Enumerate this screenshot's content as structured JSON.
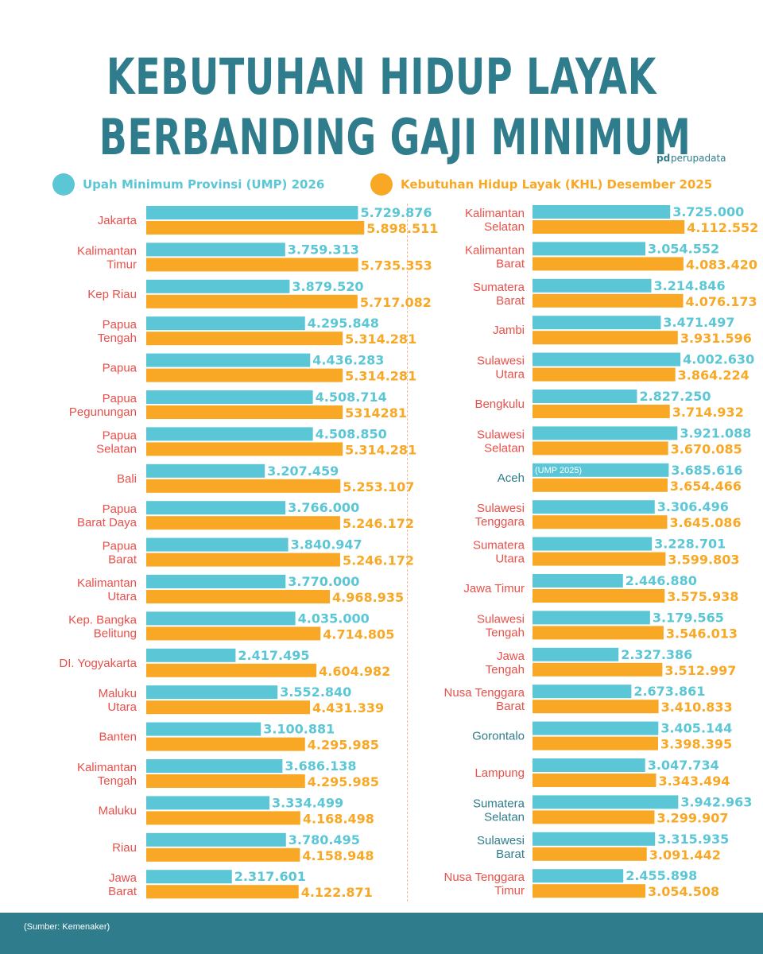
{
  "title_line1": "KEBUTUHAN HIDUP LAYAK",
  "title_line2": "BERBANDING GAJI MINIMUM",
  "brand": "perupadata",
  "source": "(Sumber: Kemenaker)",
  "colors": {
    "ump": "#5bc7d6",
    "khl": "#f9a825",
    "label_left": "#e8504a",
    "label_right": "#e8504a",
    "label_teal": "#2f7c8c"
  },
  "chart_data": {
    "type": "bar",
    "orientation": "horizontal",
    "title": "KEBUTUHAN HIDUP LAYAK BERBANDING GAJI MINIMUM",
    "legend": [
      "Upah Minimum Provinsi (UMP) 2026",
      "Kebutuhan Hidup Layak (KHL) Desember 2025"
    ],
    "xlim": [
      0,
      6000000
    ],
    "panels": [
      {
        "rows": [
          {
            "label": [
              "Jakarta"
            ],
            "ump": 5729876,
            "ump_label": "5.729.876",
            "khl": 5898511,
            "khl_label": "5.898.511"
          },
          {
            "label": [
              "Kalimantan",
              "Timur"
            ],
            "ump": 3759313,
            "ump_label": "3.759.313",
            "khl": 5735353,
            "khl_label": "5.735.353"
          },
          {
            "label": [
              "Kep Riau"
            ],
            "ump": 3879520,
            "ump_label": "3.879.520",
            "khl": 5717082,
            "khl_label": "5.717.082"
          },
          {
            "label": [
              "Papua",
              "Tengah"
            ],
            "ump": 4295848,
            "ump_label": "4.295.848",
            "khl": 5314281,
            "khl_label": "5.314.281"
          },
          {
            "label": [
              "Papua"
            ],
            "ump": 4436283,
            "ump_label": "4.436.283",
            "khl": 5314281,
            "khl_label": "5.314.281"
          },
          {
            "label": [
              "Papua",
              "Pegunungan"
            ],
            "ump": 4508714,
            "ump_label": "4.508.714",
            "khl": 5314281,
            "khl_label": "5314281"
          },
          {
            "label": [
              "Papua",
              "Selatan"
            ],
            "ump": 4508850,
            "ump_label": "4.508.850",
            "khl": 5314281,
            "khl_label": "5.314.281"
          },
          {
            "label": [
              "Bali"
            ],
            "ump": 3207459,
            "ump_label": "3.207.459",
            "khl": 5253107,
            "khl_label": "5.253.107"
          },
          {
            "label": [
              "Papua",
              "Barat Daya"
            ],
            "ump": 3766000,
            "ump_label": "3.766.000",
            "khl": 5246172,
            "khl_label": "5.246.172"
          },
          {
            "label": [
              "Papua",
              "Barat"
            ],
            "ump": 3840947,
            "ump_label": "3.840.947",
            "khl": 5246172,
            "khl_label": "5.246.172"
          },
          {
            "label": [
              "Kalimantan",
              "Utara"
            ],
            "ump": 3770000,
            "ump_label": "3.770.000",
            "khl": 4968935,
            "khl_label": "4.968.935"
          },
          {
            "label": [
              "Kep. Bangka",
              "Belitung"
            ],
            "ump": 4035000,
            "ump_label": "4.035.000",
            "khl": 4714805,
            "khl_label": "4.714.805"
          },
          {
            "label": [
              "DI. Yogyakarta"
            ],
            "ump": 2417495,
            "ump_label": "2.417.495",
            "khl": 4604982,
            "khl_label": "4.604.982"
          },
          {
            "label": [
              "Maluku",
              "Utara"
            ],
            "ump": 3552840,
            "ump_label": "3.552.840",
            "khl": 4431339,
            "khl_label": "4.431.339"
          },
          {
            "label": [
              "Banten"
            ],
            "ump": 3100881,
            "ump_label": "3.100.881",
            "khl": 4295985,
            "khl_label": "4.295.985"
          },
          {
            "label": [
              "Kalimantan",
              "Tengah"
            ],
            "ump": 3686138,
            "ump_label": "3.686.138",
            "khl": 4295985,
            "khl_label": "4.295.985"
          },
          {
            "label": [
              "Maluku"
            ],
            "ump": 3334499,
            "ump_label": "3.334.499",
            "khl": 4168498,
            "khl_label": "4.168.498"
          },
          {
            "label": [
              "Riau"
            ],
            "ump": 3780495,
            "ump_label": "3.780.495",
            "khl": 4158948,
            "khl_label": "4.158.948"
          },
          {
            "label": [
              "Jawa",
              "Barat"
            ],
            "ump": 2317601,
            "ump_label": "2.317.601",
            "khl": 4122871,
            "khl_label": "4.122.871"
          }
        ]
      },
      {
        "rows": [
          {
            "label": [
              "Kalimantan",
              "Selatan"
            ],
            "ump": 3725000,
            "ump_label": "3.725.000",
            "khl": 4112552,
            "khl_label": "4.112.552"
          },
          {
            "label": [
              "Kalimantan",
              "Barat"
            ],
            "ump": 3054552,
            "ump_label": "3.054.552",
            "khl": 4083420,
            "khl_label": "4.083.420"
          },
          {
            "label": [
              "Sumatera",
              "Barat"
            ],
            "ump": 3214846,
            "ump_label": "3.214.846",
            "khl": 4076173,
            "khl_label": "4.076.173"
          },
          {
            "label": [
              "Jambi"
            ],
            "ump": 3471497,
            "ump_label": "3.471.497",
            "khl": 3931596,
            "khl_label": "3.931.596"
          },
          {
            "label": [
              "Sulawesi",
              "Utara"
            ],
            "ump": 4002630,
            "ump_label": "4.002.630",
            "khl": 3864224,
            "khl_label": "3.864.224"
          },
          {
            "label": [
              "Bengkulu"
            ],
            "ump": 2827250,
            "ump_label": "2.827.250",
            "khl": 3714932,
            "khl_label": "3.714.932"
          },
          {
            "label": [
              "Sulawesi",
              "Selatan"
            ],
            "ump": 3921088,
            "ump_label": "3.921.088",
            "khl": 3670085,
            "khl_label": "3.670.085"
          },
          {
            "label": [
              "Aceh"
            ],
            "ump": 3685616,
            "ump_label": "3.685.616",
            "khl": 3654466,
            "khl_label": "3.654.466",
            "ump_note": "(UMP 2025)",
            "label_color": "teal"
          },
          {
            "label": [
              "Sulawesi",
              "Tenggara"
            ],
            "ump": 3306496,
            "ump_label": "3.306.496",
            "khl": 3645086,
            "khl_label": "3.645.086"
          },
          {
            "label": [
              "Sumatera",
              "Utara"
            ],
            "ump": 3228701,
            "ump_label": "3.228.701",
            "khl": 3599803,
            "khl_label": "3.599.803"
          },
          {
            "label": [
              "Jawa Timur"
            ],
            "ump": 2446880,
            "ump_label": "2.446.880",
            "khl": 3575938,
            "khl_label": "3.575.938"
          },
          {
            "label": [
              "Sulawesi",
              "Tengah"
            ],
            "ump": 3179565,
            "ump_label": "3.179.565",
            "khl": 3546013,
            "khl_label": "3.546.013"
          },
          {
            "label": [
              "Jawa",
              "Tengah"
            ],
            "ump": 2327386,
            "ump_label": "2.327.386",
            "khl": 3512997,
            "khl_label": "3.512.997"
          },
          {
            "label": [
              "Nusa Tenggara",
              "Barat"
            ],
            "ump": 2673861,
            "ump_label": "2.673.861",
            "khl": 3410833,
            "khl_label": "3.410.833"
          },
          {
            "label": [
              "Gorontalo"
            ],
            "ump": 3405144,
            "ump_label": "3.405.144",
            "khl": 3398395,
            "khl_label": "3.398.395",
            "label_color": "teal"
          },
          {
            "label": [
              "Lampung"
            ],
            "ump": 3047734,
            "ump_label": "3.047.734",
            "khl": 3343494,
            "khl_label": "3.343.494"
          },
          {
            "label": [
              "Sumatera",
              "Selatan"
            ],
            "ump": 3942963,
            "ump_label": "3.942.963",
            "khl": 3299907,
            "khl_label": "3.299.907",
            "label_color": "teal"
          },
          {
            "label": [
              "Sulawesi",
              "Barat"
            ],
            "ump": 3315935,
            "ump_label": "3.315.935",
            "khl": 3091442,
            "khl_label": "3.091.442",
            "label_color": "teal"
          },
          {
            "label": [
              "Nusa Tenggara",
              "Timur"
            ],
            "ump": 2455898,
            "ump_label": "2.455.898",
            "khl": 3054508,
            "khl_label": "3.054.508"
          }
        ]
      }
    ]
  }
}
